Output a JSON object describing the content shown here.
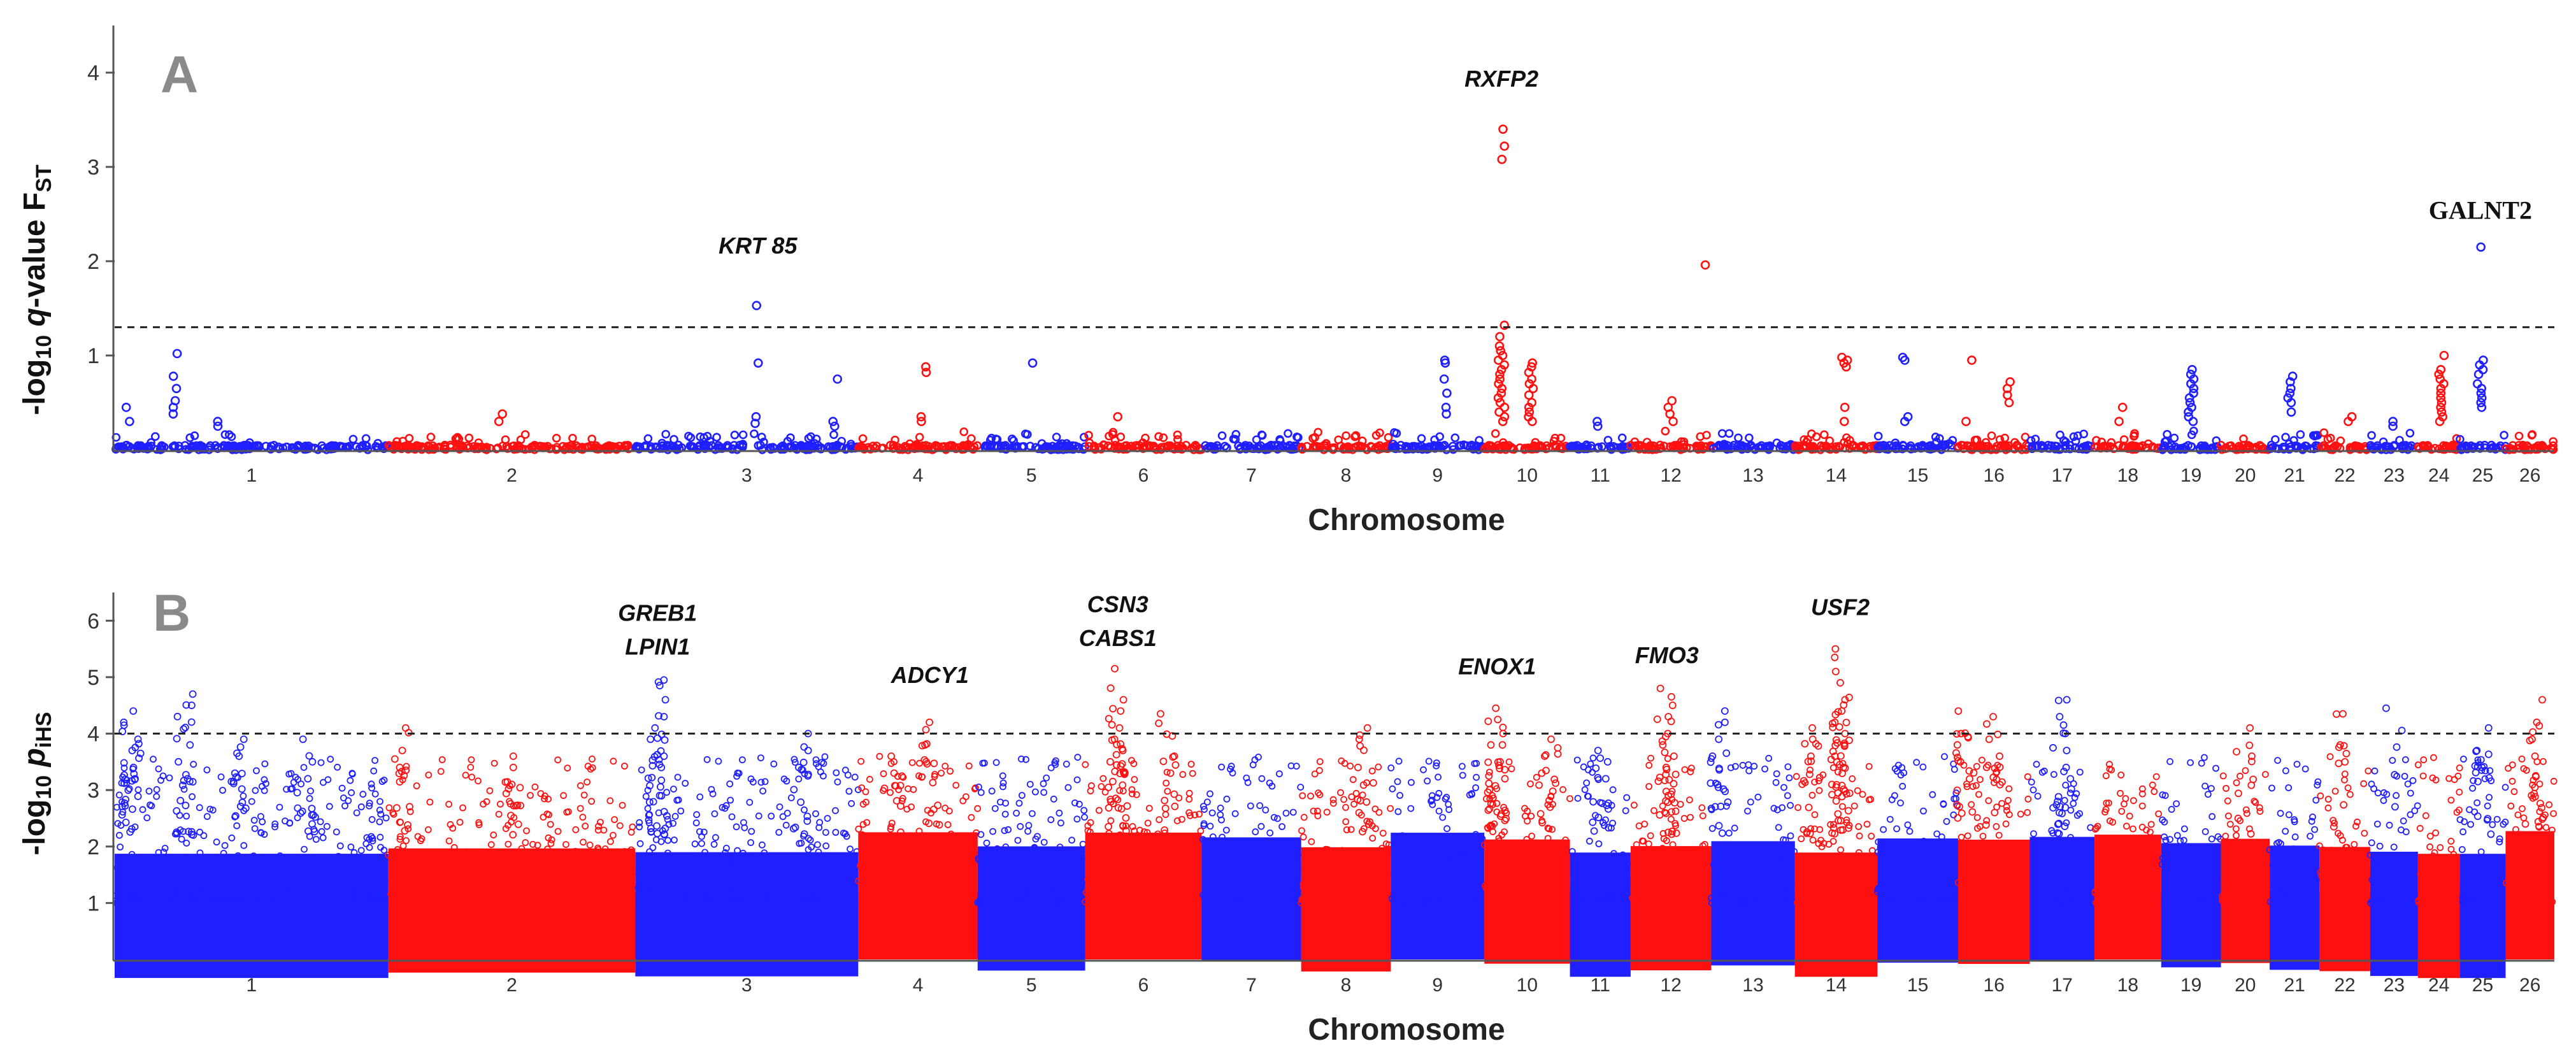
{
  "colors": {
    "blue": "#1f1fff",
    "red": "#ff1010",
    "axis": "#555555"
  },
  "chart_data": [
    {
      "type": "scatter",
      "subtype": "manhattan",
      "panel": "A",
      "xlabel": "Chromosome",
      "ylabel_prefix": "-log",
      "ylabel_sub10": "10",
      "ylabel_q": "q",
      "ylabel_rest": "-value F",
      "ylabel_sub": "ST",
      "ylim": [
        0,
        4.5
      ],
      "yticks": [
        "1",
        "2",
        "3",
        "4"
      ],
      "threshold": 1.3,
      "chromosomes": [
        "1",
        "2",
        "3",
        "4",
        "5",
        "6",
        "7",
        "8",
        "9",
        "10",
        "11",
        "12",
        "13",
        "14",
        "15",
        "16",
        "17",
        "18",
        "19",
        "20",
        "21",
        "22",
        "23",
        "24",
        "25",
        "26"
      ],
      "chromosome_lengths": [
        275,
        248,
        224,
        120,
        108,
        117,
        100,
        90,
        94,
        86,
        61,
        81,
        84,
        83,
        81,
        72,
        65,
        67,
        60,
        49,
        50,
        51,
        48,
        42,
        46,
        49
      ],
      "point_fill": "open",
      "base_level": 0.05,
      "noise_max": 0.15,
      "peaks": [
        {
          "chr": "1",
          "pos": 0.22,
          "values": [
            1.02,
            0.78,
            0.65,
            0.52,
            0.45,
            0.38
          ]
        },
        {
          "chr": "1",
          "pos": 0.05,
          "values": [
            0.45,
            0.3
          ]
        },
        {
          "chr": "1",
          "pos": 0.38,
          "values": [
            0.3,
            0.25
          ]
        },
        {
          "chr": "2",
          "pos": 0.45,
          "values": [
            0.38,
            0.3
          ]
        },
        {
          "chr": "3",
          "pos": 0.55,
          "values": [
            1.53,
            0.92,
            0.35,
            0.28
          ]
        },
        {
          "chr": "3",
          "pos": 0.9,
          "values": [
            0.75,
            0.3,
            0.25
          ]
        },
        {
          "chr": "4",
          "pos": 0.55,
          "values": [
            0.88,
            0.82,
            0.35,
            0.3
          ]
        },
        {
          "chr": "5",
          "pos": 0.5,
          "values": [
            0.92
          ]
        },
        {
          "chr": "6",
          "pos": 0.3,
          "values": [
            0.35
          ]
        },
        {
          "chr": "9",
          "pos": 0.6,
          "values": [
            0.95,
            0.92,
            0.75,
            0.6,
            0.45,
            0.38
          ]
        },
        {
          "chr": "10",
          "pos": 0.2,
          "values": [
            3.4,
            3.22,
            3.08,
            1.32,
            1.2,
            1.1,
            1.05,
            1.0,
            0.95,
            0.9,
            0.85,
            0.8,
            0.75,
            0.7,
            0.65,
            0.6,
            0.55,
            0.5,
            0.45,
            0.4,
            0.35,
            0.3
          ]
        },
        {
          "chr": "10",
          "pos": 0.55,
          "values": [
            0.92,
            0.88,
            0.82,
            0.75,
            0.7,
            0.65,
            0.58,
            0.5,
            0.45,
            0.4,
            0.35,
            0.3
          ]
        },
        {
          "chr": "11",
          "pos": 0.5,
          "values": [
            0.3,
            0.25
          ]
        },
        {
          "chr": "12",
          "pos": 0.5,
          "values": [
            0.52,
            0.45,
            0.38,
            0.3
          ]
        },
        {
          "chr": "12",
          "pos": 0.95,
          "values": [
            1.96
          ]
        },
        {
          "chr": "14",
          "pos": 0.6,
          "values": [
            0.98,
            0.95,
            0.92,
            0.88,
            0.45,
            0.3
          ]
        },
        {
          "chr": "15",
          "pos": 0.35,
          "values": [
            0.98,
            0.95,
            0.35,
            0.3
          ]
        },
        {
          "chr": "16",
          "pos": 0.15,
          "values": [
            0.95,
            0.3
          ]
        },
        {
          "chr": "16",
          "pos": 0.7,
          "values": [
            0.72,
            0.65,
            0.58,
            0.5
          ]
        },
        {
          "chr": "18",
          "pos": 0.4,
          "values": [
            0.45,
            0.3
          ]
        },
        {
          "chr": "19",
          "pos": 0.5,
          "values": [
            0.85,
            0.8,
            0.75,
            0.7,
            0.65,
            0.6,
            0.55,
            0.5,
            0.45,
            0.4,
            0.35,
            0.3
          ]
        },
        {
          "chr": "21",
          "pos": 0.4,
          "values": [
            0.78,
            0.72,
            0.65,
            0.6,
            0.55,
            0.5,
            0.4
          ]
        },
        {
          "chr": "22",
          "pos": 0.6,
          "values": [
            0.35,
            0.3
          ]
        },
        {
          "chr": "23",
          "pos": 0.5,
          "values": [
            0.3,
            0.25
          ]
        },
        {
          "chr": "24",
          "pos": 0.55,
          "values": [
            1.0,
            0.85,
            0.8,
            0.75,
            0.7,
            0.65,
            0.6,
            0.55,
            0.5,
            0.45,
            0.4,
            0.35,
            0.3
          ]
        },
        {
          "chr": "25",
          "pos": 0.45,
          "values": [
            2.15,
            0.95,
            0.9,
            0.85,
            0.8,
            0.7,
            0.65,
            0.6,
            0.55,
            0.5,
            0.45
          ]
        }
      ],
      "annotations": [
        {
          "text": "KRT 85",
          "chr": "3",
          "pos": 0.55,
          "y": 2.08,
          "style": "italic"
        },
        {
          "text": "RXFP2",
          "chr": "10",
          "pos": 0.2,
          "y": 3.85,
          "style": "italic"
        },
        {
          "text": "GALNT2",
          "chr": "25",
          "pos": 0.45,
          "y": 2.45,
          "style": "serif"
        }
      ]
    },
    {
      "type": "scatter",
      "subtype": "manhattan",
      "panel": "B",
      "xlabel": "Chromosome",
      "ylabel_prefix": "-log",
      "ylabel_sub10": "10",
      "ylabel_p": "p",
      "ylabel_sub": "iHS",
      "ylim": [
        0,
        6.5
      ],
      "yticks": [
        "1",
        "2",
        "3",
        "4",
        "5",
        "6"
      ],
      "threshold": 4.0,
      "chromosomes": [
        "1",
        "2",
        "3",
        "4",
        "5",
        "6",
        "7",
        "8",
        "9",
        "10",
        "11",
        "12",
        "13",
        "14",
        "15",
        "16",
        "17",
        "18",
        "19",
        "20",
        "21",
        "22",
        "23",
        "24",
        "25",
        "26"
      ],
      "chromosome_lengths": [
        275,
        248,
        224,
        120,
        108,
        117,
        100,
        90,
        94,
        86,
        61,
        81,
        84,
        83,
        81,
        72,
        65,
        67,
        60,
        49,
        50,
        51,
        48,
        42,
        46,
        49
      ],
      "point_fill": "open",
      "dense_top": 2.2,
      "scatter_max": 3.6,
      "peaks": [
        {
          "chr": "1",
          "pos": 0.06,
          "values": [
            4.4,
            4.2,
            3.9,
            3.7,
            3.4,
            3.2
          ]
        },
        {
          "chr": "1",
          "pos": 0.26,
          "values": [
            4.7,
            4.5,
            3.8,
            3.5,
            3.2
          ]
        },
        {
          "chr": "1",
          "pos": 0.45,
          "values": [
            3.9,
            3.6,
            3.3
          ]
        },
        {
          "chr": "1",
          "pos": 0.7,
          "values": [
            3.9,
            3.5,
            3.2
          ]
        },
        {
          "chr": "2",
          "pos": 0.05,
          "values": [
            4.1,
            3.7,
            3.4
          ]
        },
        {
          "chr": "2",
          "pos": 0.5,
          "values": [
            3.6,
            3.4,
            3.1
          ]
        },
        {
          "chr": "3",
          "pos": 0.1,
          "values": [
            4.95,
            4.85,
            4.6,
            4.3,
            4.1,
            3.9,
            3.6,
            3.4
          ]
        },
        {
          "chr": "3",
          "pos": 0.75,
          "values": [
            4.0,
            3.7,
            3.4
          ]
        },
        {
          "chr": "4",
          "pos": 0.6,
          "values": [
            4.2,
            3.8,
            3.5
          ]
        },
        {
          "chr": "4",
          "pos": 0.3,
          "values": [
            3.6,
            3.3
          ]
        },
        {
          "chr": "6",
          "pos": 0.28,
          "values": [
            5.15,
            4.6,
            4.4,
            4.1,
            3.9,
            3.7,
            3.5,
            3.3
          ]
        },
        {
          "chr": "6",
          "pos": 0.7,
          "values": [
            4.35,
            3.6,
            3.3
          ]
        },
        {
          "chr": "8",
          "pos": 0.7,
          "values": [
            4.1,
            3.9,
            3.4
          ]
        },
        {
          "chr": "10",
          "pos": 0.15,
          "values": [
            4.45,
            4.25,
            4.0,
            3.8,
            3.5,
            3.2
          ]
        },
        {
          "chr": "10",
          "pos": 0.75,
          "values": [
            3.9,
            3.6,
            3.3
          ]
        },
        {
          "chr": "11",
          "pos": 0.5,
          "values": [
            3.7,
            3.5,
            3.2
          ]
        },
        {
          "chr": "12",
          "pos": 0.45,
          "values": [
            4.8,
            4.5,
            4.3,
            4.0,
            3.8,
            3.6,
            3.4
          ]
        },
        {
          "chr": "13",
          "pos": 0.1,
          "values": [
            4.4,
            4.2,
            3.9,
            3.6
          ]
        },
        {
          "chr": "14",
          "pos": 0.55,
          "values": [
            5.5,
            5.35,
            5.1,
            4.9,
            4.6,
            4.4,
            4.2,
            4.0,
            3.8,
            3.6,
            3.4
          ]
        },
        {
          "chr": "14",
          "pos": 0.2,
          "values": [
            4.1,
            3.9,
            3.6
          ]
        },
        {
          "chr": "16",
          "pos": 0.1,
          "values": [
            4.4,
            4.0,
            3.8,
            3.5
          ]
        },
        {
          "chr": "16",
          "pos": 0.5,
          "values": [
            4.3,
            3.9,
            3.6
          ]
        },
        {
          "chr": "17",
          "pos": 0.5,
          "values": [
            4.6,
            4.3,
            4.0,
            3.7,
            3.4
          ]
        },
        {
          "chr": "20",
          "pos": 0.5,
          "values": [
            4.1,
            3.6
          ]
        },
        {
          "chr": "22",
          "pos": 0.45,
          "values": [
            4.35,
            3.8
          ]
        },
        {
          "chr": "23",
          "pos": 0.5,
          "values": [
            4.45
          ]
        },
        {
          "chr": "25",
          "pos": 0.5,
          "values": [
            4.1,
            3.7,
            3.4
          ]
        },
        {
          "chr": "26",
          "pos": 0.6,
          "values": [
            4.6,
            4.2,
            3.9,
            3.6
          ]
        }
      ],
      "annotations": [
        {
          "text": "GREB1",
          "chr": "3",
          "pos": 0.1,
          "y": 6.0,
          "style": "italic"
        },
        {
          "text": "LPIN1",
          "chr": "3",
          "pos": 0.1,
          "y": 5.4,
          "style": "italic"
        },
        {
          "text": "ADCY1",
          "chr": "4",
          "pos": 0.6,
          "y": 4.9,
          "style": "italic"
        },
        {
          "text": "CSN3",
          "chr": "6",
          "pos": 0.28,
          "y": 6.15,
          "style": "italic"
        },
        {
          "text": "CABS1",
          "chr": "6",
          "pos": 0.28,
          "y": 5.55,
          "style": "italic"
        },
        {
          "text": "ENOX1",
          "chr": "10",
          "pos": 0.15,
          "y": 5.05,
          "style": "italic"
        },
        {
          "text": "FMO3",
          "chr": "12",
          "pos": 0.45,
          "y": 5.25,
          "style": "italic"
        },
        {
          "text": "USF2",
          "chr": "14",
          "pos": 0.55,
          "y": 6.1,
          "style": "italic"
        }
      ]
    }
  ]
}
